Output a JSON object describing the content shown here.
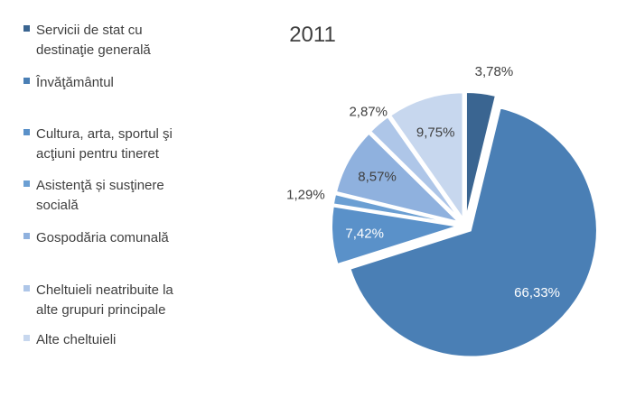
{
  "chart_data": {
    "type": "pie",
    "title": "2011",
    "legend_position": "left",
    "exploded": true,
    "slices": [
      {
        "label": "Servicii de stat cu destinaţie generală",
        "legend_lines": [
          "Servicii de stat cu",
          "destinaţie generală"
        ],
        "value": 3.78,
        "value_label": "3,78%",
        "color": "#3a6591"
      },
      {
        "label": "Învăţământul",
        "legend_lines": [
          "Învăţământul"
        ],
        "value": 66.33,
        "value_label": "66,33%",
        "color": "#4a7fb5"
      },
      {
        "label": "Cultura, arta, sportul şi acţiuni pentru tineret",
        "legend_lines": [
          "Cultura, arta, sportul şi",
          "acţiuni pentru tineret"
        ],
        "value": 7.42,
        "value_label": "7,42%",
        "color": "#5a91c9"
      },
      {
        "label": "Asistenţă și susţinere socială",
        "legend_lines": [
          "Asistenţă și susţinere",
          "socială"
        ],
        "value": 1.29,
        "value_label": "1,29%",
        "color": "#6b9fd3"
      },
      {
        "label": "Gospodăria comunală",
        "legend_lines": [
          "Gospodăria comunală"
        ],
        "value": 8.57,
        "value_label": "8,57%",
        "color": "#8fb1de"
      },
      {
        "label": "Cheltuieli neatribuite la alte grupuri principale",
        "legend_lines": [
          "Cheltuieli neatribuite la",
          "alte grupuri principale"
        ],
        "value": 2.87,
        "value_label": "2,87%",
        "color": "#aec6e8"
      },
      {
        "label": "Alte cheltuieli",
        "legend_lines": [
          "Alte cheltuieli"
        ],
        "value": 9.75,
        "value_label": "9,75%",
        "color": "#c7d7ee"
      }
    ]
  }
}
